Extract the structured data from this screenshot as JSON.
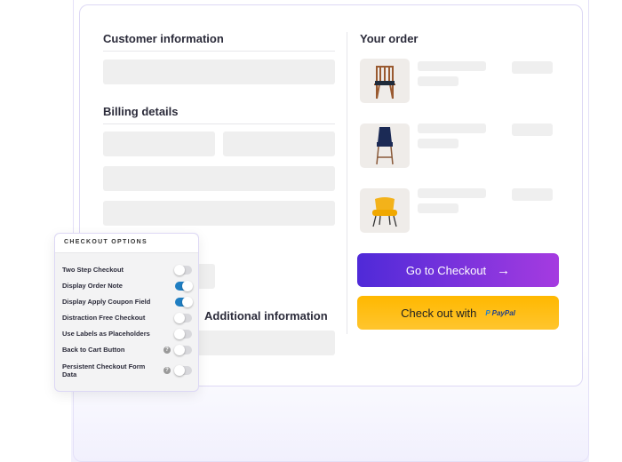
{
  "sections": {
    "customer": "Customer information",
    "billing": "Billing details",
    "additional": "Additional information",
    "order": "Your order"
  },
  "products": [
    {
      "icon": "wooden-chair"
    },
    {
      "icon": "navy-bar-stool"
    },
    {
      "icon": "yellow-armchair"
    }
  ],
  "buttons": {
    "checkout": "Go to Checkout",
    "checkout_arrow": "→",
    "paypal_prefix": "Check out with",
    "paypal_logo": "PayPal"
  },
  "panel": {
    "title": "CHECKOUT OPTIONS",
    "options": [
      {
        "label": "Two Step Checkout",
        "on": false,
        "help": false
      },
      {
        "label": "Display Order Note",
        "on": true,
        "help": false
      },
      {
        "label": "Display Apply Coupon Field",
        "on": true,
        "help": false
      },
      {
        "label": "Distraction Free Checkout",
        "on": false,
        "help": false
      },
      {
        "label": "Use Labels as Placeholders",
        "on": false,
        "help": false
      },
      {
        "label": "Back to Cart Button",
        "on": false,
        "help": true
      },
      {
        "label": "Persistent Checkout Form Data",
        "on": false,
        "help": true
      }
    ],
    "help_glyph": "?"
  },
  "colors": {
    "accent_start": "#4f2ad8",
    "accent_end": "#a53be0",
    "paypal": "#ffb800",
    "toggle_on": "#1f7ec2"
  }
}
